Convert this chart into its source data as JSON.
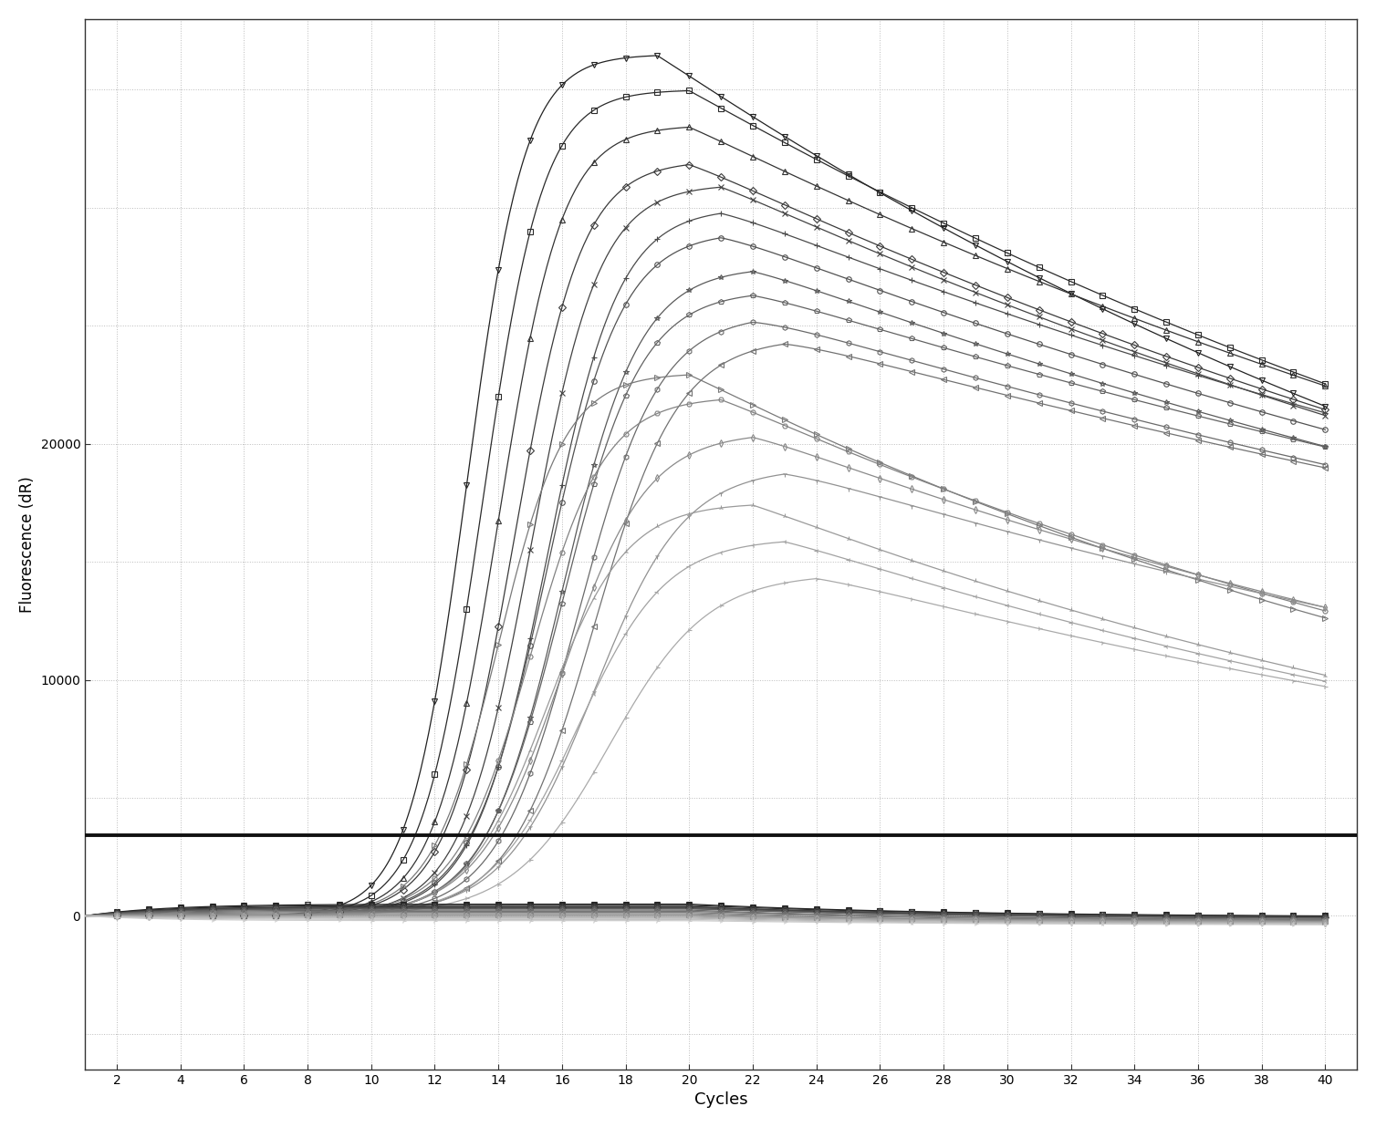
{
  "xlabel": "Cycles",
  "ylabel": "Fluorescence (dR)",
  "xlim": [
    1,
    41
  ],
  "ylim": [
    -6500,
    38000
  ],
  "yticks": [
    0,
    10000,
    20000
  ],
  "ytick_labels": [
    "0",
    "10000",
    "20000"
  ],
  "xticks": [
    2,
    4,
    6,
    8,
    10,
    12,
    14,
    16,
    18,
    20,
    22,
    24,
    26,
    28,
    30,
    32,
    34,
    36,
    38,
    40
  ],
  "threshold_y": 3400,
  "background_color": "#ffffff",
  "grid_color": "#bbbbbb",
  "figsize": [
    15.08,
    12.36
  ],
  "dpi": 100,
  "pos_curves": [
    {
      "Ct": 13.0,
      "top": 36500,
      "rise": 1.1,
      "peak": 19,
      "decay": 0.025
    },
    {
      "Ct": 13.5,
      "top": 35000,
      "rise": 1.05,
      "peak": 20,
      "decay": 0.022
    },
    {
      "Ct": 14.0,
      "top": 33500,
      "rise": 1.0,
      "peak": 20,
      "decay": 0.02
    },
    {
      "Ct": 14.5,
      "top": 32000,
      "rise": 0.95,
      "peak": 20,
      "decay": 0.02
    },
    {
      "Ct": 15.0,
      "top": 31000,
      "rise": 0.92,
      "peak": 21,
      "decay": 0.02
    },
    {
      "Ct": 15.5,
      "top": 30000,
      "rise": 0.88,
      "peak": 21,
      "decay": 0.018
    },
    {
      "Ct": 15.5,
      "top": 29000,
      "rise": 0.85,
      "peak": 21,
      "decay": 0.018
    },
    {
      "Ct": 16.0,
      "top": 27500,
      "rise": 0.82,
      "peak": 22,
      "decay": 0.018
    },
    {
      "Ct": 16.0,
      "top": 26500,
      "rise": 0.8,
      "peak": 22,
      "decay": 0.016
    },
    {
      "Ct": 16.5,
      "top": 25500,
      "rise": 0.78,
      "peak": 22,
      "decay": 0.016
    },
    {
      "Ct": 17.0,
      "top": 24500,
      "rise": 0.75,
      "peak": 23,
      "decay": 0.015
    },
    {
      "Ct": 14.0,
      "top": 23000,
      "rise": 0.95,
      "peak": 20,
      "decay": 0.03
    },
    {
      "Ct": 15.0,
      "top": 22000,
      "rise": 0.85,
      "peak": 21,
      "decay": 0.028
    },
    {
      "Ct": 16.0,
      "top": 20500,
      "rise": 0.75,
      "peak": 22,
      "decay": 0.025
    },
    {
      "Ct": 17.0,
      "top": 19000,
      "rise": 0.7,
      "peak": 23,
      "decay": 0.022
    },
    {
      "Ct": 15.5,
      "top": 17500,
      "rise": 0.8,
      "peak": 22,
      "decay": 0.03
    },
    {
      "Ct": 16.5,
      "top": 16000,
      "rise": 0.72,
      "peak": 23,
      "decay": 0.028
    },
    {
      "Ct": 17.5,
      "top": 14500,
      "rise": 0.65,
      "peak": 24,
      "decay": 0.025
    }
  ],
  "neg_curves": [
    {
      "peak_x": 20,
      "peak_y": 500,
      "decay": 0.12
    },
    {
      "peak_x": 20,
      "peak_y": 450,
      "decay": 0.11
    },
    {
      "peak_x": 20,
      "peak_y": 400,
      "decay": 0.13
    },
    {
      "peak_x": 20,
      "peak_y": 380,
      "decay": 0.1
    },
    {
      "peak_x": 20,
      "peak_y": 350,
      "decay": 0.11
    },
    {
      "peak_x": 20,
      "peak_y": 320,
      "decay": 0.12
    },
    {
      "peak_x": 20,
      "peak_y": 300,
      "decay": 0.1
    },
    {
      "peak_x": 20,
      "peak_y": 250,
      "decay": 0.13
    },
    {
      "peak_x": 20,
      "peak_y": 200,
      "decay": 0.11
    },
    {
      "peak_x": 20,
      "peak_y": 150,
      "decay": 0.12
    },
    {
      "peak_x": 20,
      "peak_y": 100,
      "decay": 0.13
    },
    {
      "peak_x": 20,
      "peak_y": 50,
      "decay": 0.11
    },
    {
      "peak_x": 20,
      "peak_y": 20,
      "decay": 0.12
    },
    {
      "peak_x": 20,
      "peak_y": -20,
      "decay": 0.1
    },
    {
      "peak_x": 20,
      "peak_y": -60,
      "decay": 0.11
    },
    {
      "peak_x": 20,
      "peak_y": -100,
      "decay": 0.12
    },
    {
      "peak_x": 20,
      "peak_y": -150,
      "decay": 0.11
    },
    {
      "peak_x": 20,
      "peak_y": -200,
      "decay": 0.1
    }
  ],
  "markers": [
    "v",
    "s",
    "^",
    "D",
    "x",
    "+",
    "o",
    "*",
    "p",
    "h",
    "<",
    ">",
    "H",
    "d",
    "1",
    "2",
    "3",
    "4"
  ]
}
